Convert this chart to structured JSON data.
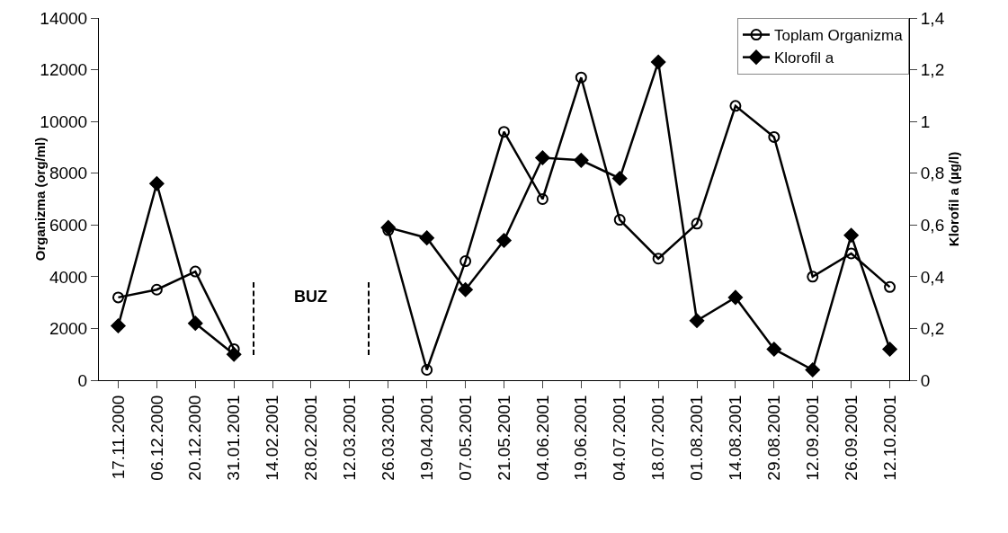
{
  "chart_data": {
    "type": "line",
    "xlabel": null,
    "ylabel": "Organizma (org/ml)",
    "y2label": "Klorofil a (µg/l)",
    "categories": [
      "17.11.2000",
      "06.12.2000",
      "20.12.2000",
      "31.01.2001",
      "14.02.2001",
      "28.02.2001",
      "12.03.2001",
      "26.03.2001",
      "19.04.2001",
      "07.05.2001",
      "21.05.2001",
      "04.06.2001",
      "19.06.2001",
      "04.07.2001",
      "18.07.2001",
      "01.08.2001",
      "14.08.2001",
      "29.08.2001",
      "12.09.2001",
      "26.09.2001",
      "12.10.2001"
    ],
    "series": [
      {
        "name": "Toplam Organizma",
        "color": "#000000",
        "marker": "circle",
        "values": [
          3200,
          3500,
          4200,
          1200,
          null,
          null,
          null,
          5800,
          400,
          4600,
          9600,
          7000,
          11700,
          6200,
          4700,
          6050,
          10600,
          9400,
          4000,
          4900,
          3600
        ]
      },
      {
        "name": "Klorofil a",
        "color": "#000000",
        "marker": "diamond",
        "axis": "y2",
        "values": [
          0.21,
          0.76,
          0.22,
          0.1,
          null,
          null,
          null,
          0.59,
          0.55,
          0.35,
          0.54,
          0.86,
          0.85,
          0.78,
          1.23,
          0.23,
          0.32,
          0.12,
          0.04,
          0.56,
          0.12
        ]
      }
    ],
    "ylim": [
      0,
      14000
    ],
    "yticks": [
      0,
      2000,
      4000,
      6000,
      8000,
      10000,
      12000,
      14000
    ],
    "y2lim": [
      0,
      1.4
    ],
    "y2ticks": [
      0,
      {
        "value": 0.2,
        "label": "0,2"
      },
      {
        "value": 0.4,
        "label": "0,4"
      },
      {
        "value": 0.6,
        "label": "0,6"
      },
      {
        "value": 0.8,
        "label": "0,8"
      },
      1,
      {
        "value": 1.2,
        "label": "1,2"
      },
      {
        "value": 1.4,
        "label": "1,4"
      }
    ],
    "annotations": [
      "BUZ"
    ],
    "grid": false,
    "legend": "top right",
    "line_style": "solid"
  }
}
